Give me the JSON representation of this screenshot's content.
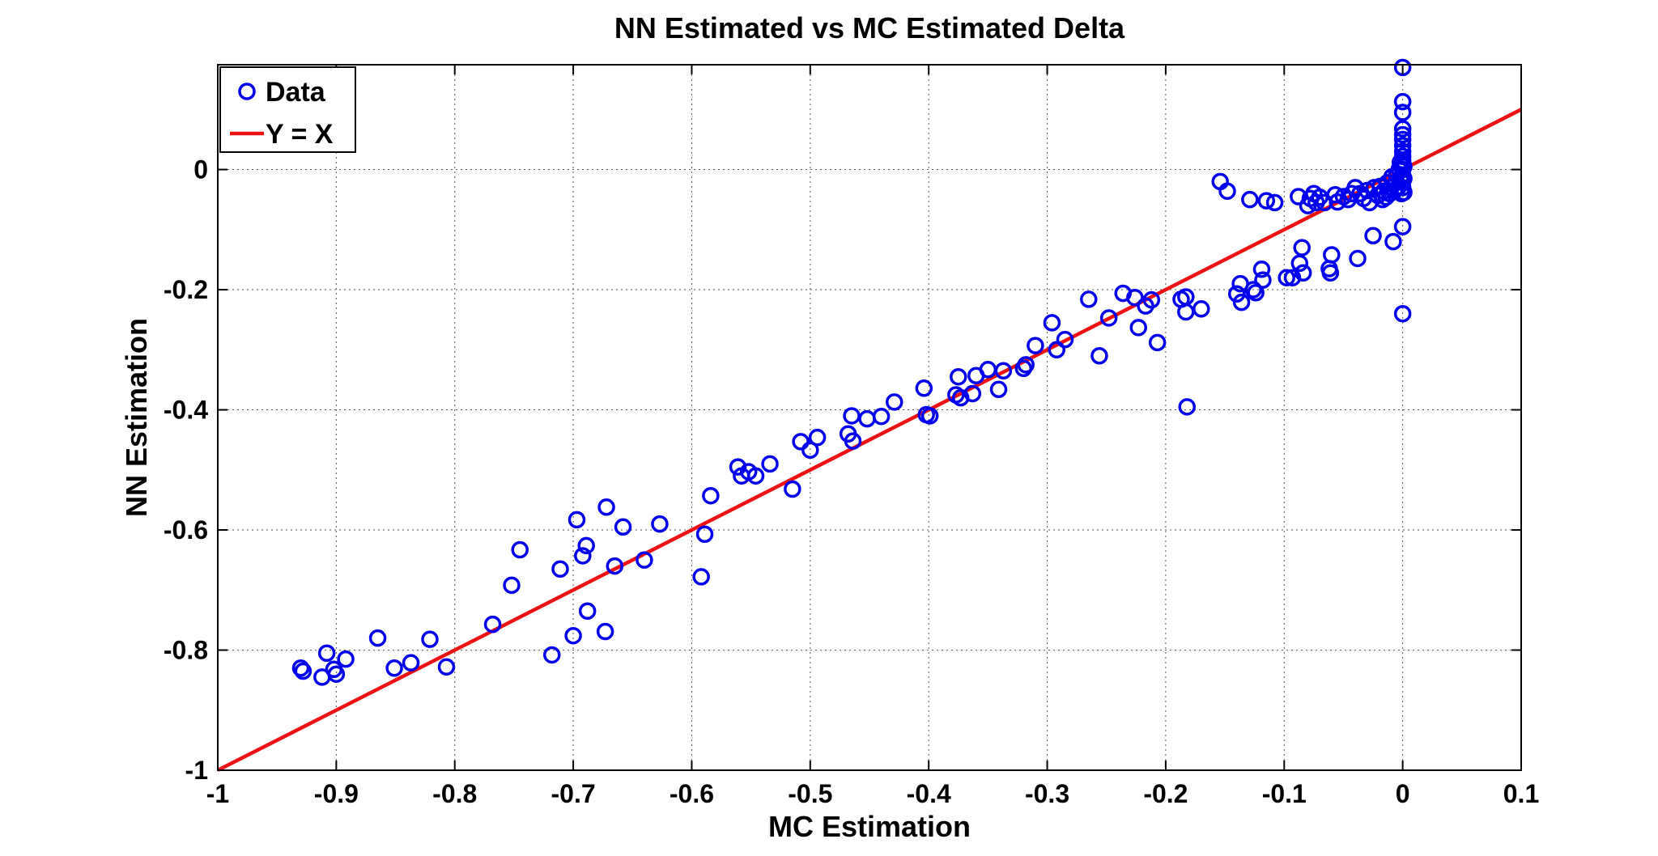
{
  "chart_data": {
    "type": "scatter",
    "title": "NN Estimated vs MC Estimated Delta",
    "xlabel": "MC Estimation",
    "ylabel": "NN Estimation",
    "xlim": [
      -1,
      0.1
    ],
    "ylim": [
      -1,
      0.17
    ],
    "xticks": [
      -1,
      -0.9,
      -0.8,
      -0.7,
      -0.6,
      -0.5,
      -0.4,
      -0.3,
      -0.2,
      -0.1,
      0,
      0.1
    ],
    "xtick_labels": [
      "-1",
      "-0.9",
      "-0.8",
      "-0.7",
      "-0.6",
      "-0.5",
      "-0.4",
      "-0.3",
      "-0.2",
      "-0.1",
      "0",
      "0.1"
    ],
    "yticks": [
      -1,
      -0.8,
      -0.6,
      -0.4,
      -0.2,
      0
    ],
    "ytick_labels": [
      "-1",
      "-0.8",
      "-0.6",
      "-0.4",
      "-0.2",
      "0"
    ],
    "grid": true,
    "legend_position": "top-left",
    "colors": {
      "data": "#0000ee",
      "line": "#ee1111"
    },
    "series": [
      {
        "name": "Data",
        "kind": "scatter",
        "points": [
          [
            -0.93,
            -0.83
          ],
          [
            -0.928,
            -0.835
          ],
          [
            -0.912,
            -0.845
          ],
          [
            -0.908,
            -0.805
          ],
          [
            -0.902,
            -0.832
          ],
          [
            -0.9,
            -0.84
          ],
          [
            -0.892,
            -0.815
          ],
          [
            -0.865,
            -0.78
          ],
          [
            -0.851,
            -0.83
          ],
          [
            -0.837,
            -0.821
          ],
          [
            -0.821,
            -0.782
          ],
          [
            -0.807,
            -0.828
          ],
          [
            -0.768,
            -0.757
          ],
          [
            -0.752,
            -0.692
          ],
          [
            -0.745,
            -0.633
          ],
          [
            -0.718,
            -0.808
          ],
          [
            -0.711,
            -0.665
          ],
          [
            -0.7,
            -0.776
          ],
          [
            -0.697,
            -0.583
          ],
          [
            -0.692,
            -0.643
          ],
          [
            -0.689,
            -0.626
          ],
          [
            -0.688,
            -0.735
          ],
          [
            -0.673,
            -0.769
          ],
          [
            -0.672,
            -0.562
          ],
          [
            -0.665,
            -0.66
          ],
          [
            -0.658,
            -0.595
          ],
          [
            -0.64,
            -0.65
          ],
          [
            -0.627,
            -0.59
          ],
          [
            -0.592,
            -0.678
          ],
          [
            -0.589,
            -0.607
          ],
          [
            -0.584,
            -0.543
          ],
          [
            -0.561,
            -0.495
          ],
          [
            -0.558,
            -0.51
          ],
          [
            -0.552,
            -0.503
          ],
          [
            -0.546,
            -0.51
          ],
          [
            -0.534,
            -0.49
          ],
          [
            -0.515,
            -0.532
          ],
          [
            -0.508,
            -0.453
          ],
          [
            -0.5,
            -0.467
          ],
          [
            -0.494,
            -0.446
          ],
          [
            -0.468,
            -0.44
          ],
          [
            -0.465,
            -0.41
          ],
          [
            -0.464,
            -0.452
          ],
          [
            -0.452,
            -0.415
          ],
          [
            -0.44,
            -0.411
          ],
          [
            -0.429,
            -0.387
          ],
          [
            -0.404,
            -0.364
          ],
          [
            -0.402,
            -0.408
          ],
          [
            -0.399,
            -0.41
          ],
          [
            -0.377,
            -0.375
          ],
          [
            -0.375,
            -0.345
          ],
          [
            -0.373,
            -0.38
          ],
          [
            -0.363,
            -0.373
          ],
          [
            -0.36,
            -0.343
          ],
          [
            -0.35,
            -0.333
          ],
          [
            -0.341,
            -0.366
          ],
          [
            -0.337,
            -0.335
          ],
          [
            -0.32,
            -0.331
          ],
          [
            -0.318,
            -0.325
          ],
          [
            -0.31,
            -0.293
          ],
          [
            -0.296,
            -0.255
          ],
          [
            -0.292,
            -0.3
          ],
          [
            -0.285,
            -0.283
          ],
          [
            -0.265,
            -0.216
          ],
          [
            -0.256,
            -0.31
          ],
          [
            -0.248,
            -0.247
          ],
          [
            -0.236,
            -0.206
          ],
          [
            -0.226,
            -0.213
          ],
          [
            -0.223,
            -0.263
          ],
          [
            -0.217,
            -0.227
          ],
          [
            -0.212,
            -0.217
          ],
          [
            -0.207,
            -0.288
          ],
          [
            -0.187,
            -0.216
          ],
          [
            -0.183,
            -0.212
          ],
          [
            -0.183,
            -0.237
          ],
          [
            -0.182,
            -0.395
          ],
          [
            -0.17,
            -0.232
          ],
          [
            -0.154,
            -0.02
          ],
          [
            -0.148,
            -0.036
          ],
          [
            -0.14,
            -0.207
          ],
          [
            -0.137,
            -0.19
          ],
          [
            -0.136,
            -0.221
          ],
          [
            -0.129,
            -0.05
          ],
          [
            -0.126,
            -0.2
          ],
          [
            -0.124,
            -0.205
          ],
          [
            -0.119,
            -0.166
          ],
          [
            -0.118,
            -0.184
          ],
          [
            -0.115,
            -0.052
          ],
          [
            -0.108,
            -0.055
          ],
          [
            -0.098,
            -0.18
          ],
          [
            -0.093,
            -0.18
          ],
          [
            -0.088,
            -0.045
          ],
          [
            -0.087,
            -0.156
          ],
          [
            -0.085,
            -0.13
          ],
          [
            -0.084,
            -0.172
          ],
          [
            -0.08,
            -0.06
          ],
          [
            -0.078,
            -0.048
          ],
          [
            -0.075,
            -0.04
          ],
          [
            -0.073,
            -0.055
          ],
          [
            -0.07,
            -0.046
          ],
          [
            -0.066,
            -0.055
          ],
          [
            -0.062,
            -0.165
          ],
          [
            -0.061,
            -0.172
          ],
          [
            -0.06,
            -0.142
          ],
          [
            -0.057,
            -0.042
          ],
          [
            -0.055,
            -0.054
          ],
          [
            -0.05,
            -0.045
          ],
          [
            -0.046,
            -0.05
          ],
          [
            -0.043,
            -0.04
          ],
          [
            -0.04,
            -0.03
          ],
          [
            -0.038,
            -0.148
          ],
          [
            -0.036,
            -0.04
          ],
          [
            -0.033,
            -0.048
          ],
          [
            -0.03,
            -0.035
          ],
          [
            -0.028,
            -0.055
          ],
          [
            -0.025,
            -0.11
          ],
          [
            -0.024,
            -0.03
          ],
          [
            -0.021,
            -0.043
          ],
          [
            -0.019,
            -0.028
          ],
          [
            -0.017,
            -0.05
          ],
          [
            -0.016,
            -0.036
          ],
          [
            -0.014,
            -0.046
          ],
          [
            -0.013,
            -0.022
          ],
          [
            -0.011,
            -0.04
          ],
          [
            -0.01,
            -0.03
          ],
          [
            -0.009,
            -0.012
          ],
          [
            -0.008,
            -0.12
          ],
          [
            -0.007,
            -0.035
          ],
          [
            -0.006,
            -0.022
          ],
          [
            -0.005,
            -0.008
          ],
          [
            -0.004,
            -0.03
          ],
          [
            -0.003,
            0.0
          ],
          [
            -0.002,
            -0.016
          ],
          [
            -0.002,
            0.012
          ],
          [
            -0.001,
            -0.04
          ],
          [
            0.0,
            -0.095
          ],
          [
            0.0,
            -0.24
          ],
          [
            0.0,
            0.17
          ],
          [
            0.0,
            0.113
          ],
          [
            0.0,
            0.095
          ],
          [
            0.0,
            0.068
          ],
          [
            0.0,
            0.058
          ],
          [
            0.0,
            0.05
          ],
          [
            0.0,
            0.04
          ],
          [
            0.0,
            0.03
          ],
          [
            0.0,
            0.022
          ],
          [
            0.0,
            0.015
          ],
          [
            0.0,
            0.008
          ],
          [
            0.0,
            0.0
          ],
          [
            0.0,
            -0.01
          ],
          [
            0.0,
            -0.02
          ],
          [
            0.0,
            -0.03
          ],
          [
            0.001,
            -0.015
          ],
          [
            0.001,
            0.005
          ],
          [
            0.001,
            -0.038
          ]
        ]
      },
      {
        "name": "Y = X",
        "kind": "line",
        "points": [
          [
            -1,
            -1
          ],
          [
            0.1,
            0.1
          ]
        ]
      }
    ]
  }
}
